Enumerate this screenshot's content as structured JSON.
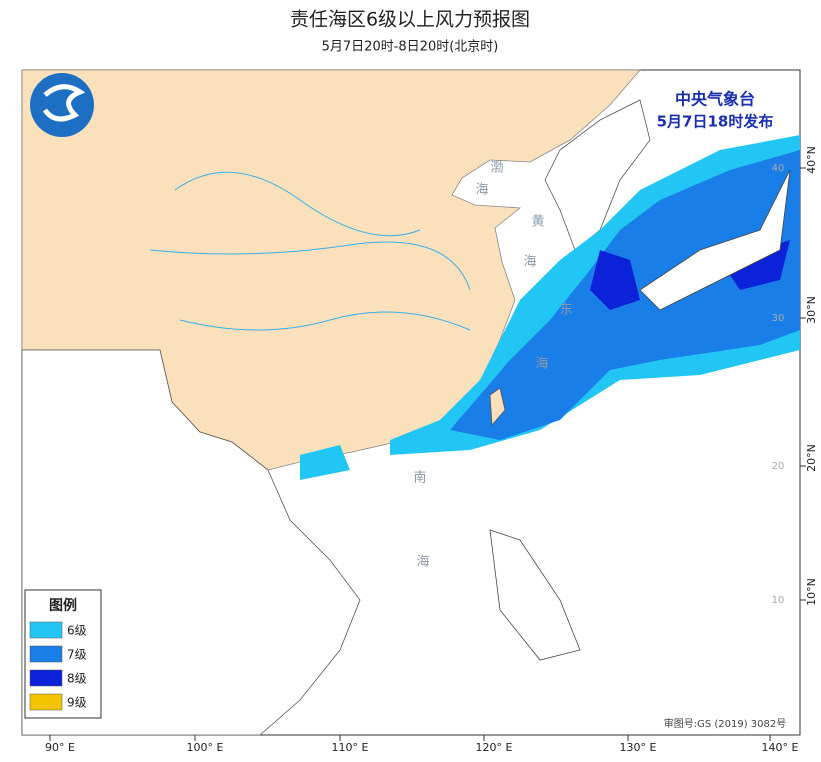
{
  "header": {
    "title": "责任海区6级以上风力预报图",
    "subtitle": "5月7日20时-8日20时(北京时)"
  },
  "issuer": {
    "agency": "中央气象台",
    "issued": "5月7日18时发布"
  },
  "legend": {
    "title": "图例",
    "items": [
      {
        "label": "6级",
        "color": "#22c6f5"
      },
      {
        "label": "7级",
        "color": "#1a7ee8"
      },
      {
        "label": "8级",
        "color": "#0b22d8"
      },
      {
        "label": "9级",
        "color": "#f5c400"
      }
    ]
  },
  "longitude_labels": [
    "90° E",
    "100° E",
    "110° E",
    "120° E",
    "130° E",
    "140° E"
  ],
  "latitude_labels": [
    "40°N",
    "30°N",
    "20°N",
    "10°N"
  ],
  "grid_labels": [
    "40",
    "30",
    "20",
    "10"
  ],
  "sea_labels": [
    "渤",
    "海",
    "黄",
    "海",
    "东",
    "海",
    "南",
    "海"
  ],
  "review_number": "审图号:GS (2019) 3082号"
}
